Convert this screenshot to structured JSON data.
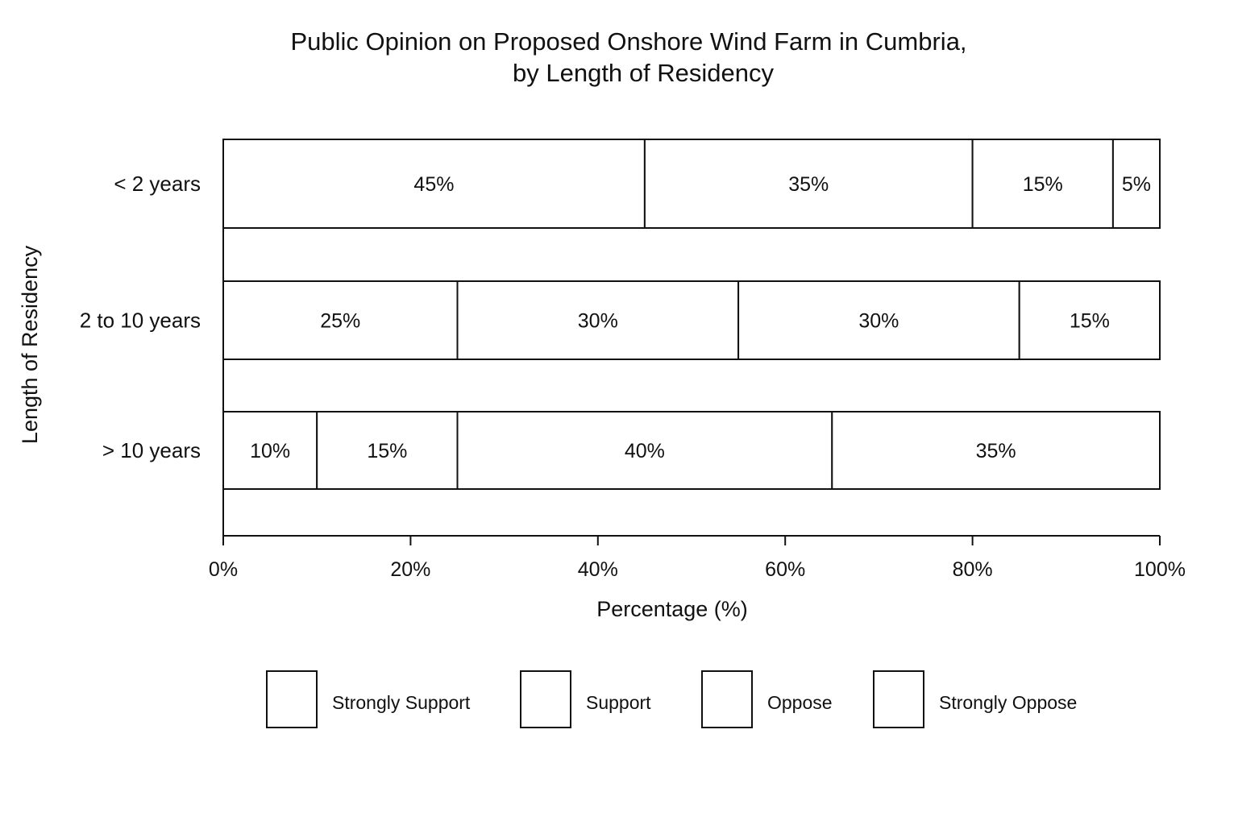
{
  "chart_data": {
    "type": "bar",
    "orientation": "horizontal",
    "stacked": true,
    "title_lines": [
      "Public Opinion on Proposed Onshore Wind Farm in Cumbria,",
      "by Length of Residency"
    ],
    "xlabel": "Percentage (%)",
    "ylabel": "Length of Residency",
    "xlim": [
      0,
      100
    ],
    "x_ticks": [
      0,
      20,
      40,
      60,
      80,
      100
    ],
    "x_tick_labels": [
      "0%",
      "20%",
      "40%",
      "60%",
      "80%",
      "100%"
    ],
    "grid": false,
    "legend_position": "bottom",
    "categories": [
      "< 2 years",
      "2 to 10 years",
      "> 10 years"
    ],
    "series": [
      {
        "name": "Strongly Support",
        "color": "#ffffff",
        "values": [
          45,
          25,
          10
        ],
        "labels": [
          "45%",
          "25%",
          "10%"
        ]
      },
      {
        "name": "Support",
        "color": "#ffffff",
        "values": [
          35,
          30,
          15
        ],
        "labels": [
          "35%",
          "30%",
          "15%"
        ]
      },
      {
        "name": "Oppose",
        "color": "#ffffff",
        "values": [
          15,
          30,
          40
        ],
        "labels": [
          "15%",
          "30%",
          "40%"
        ]
      },
      {
        "name": "Strongly Oppose",
        "color": "#ffffff",
        "values": [
          5,
          15,
          35
        ],
        "labels": [
          "5%",
          "15%",
          "35%"
        ]
      }
    ]
  }
}
